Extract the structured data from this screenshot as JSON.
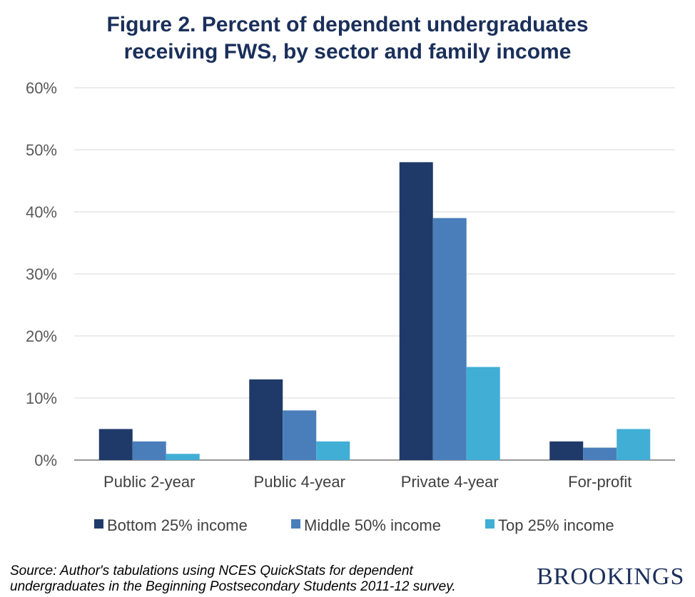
{
  "title_lines": [
    "Figure 2. Percent of dependent undergraduates",
    "receiving FWS, by sector and family income"
  ],
  "source_lines": [
    "Source: Author's tabulations using NCES QuickStats for dependent",
    "undergraduates in the Beginning Postsecondary Students 2011-12 survey."
  ],
  "brand": "BROOKINGS",
  "colors": {
    "bottom": "#1f3a68",
    "middle": "#4a7ebb",
    "top": "#41aed6",
    "grid": "#d9d9d9",
    "axis": "#595959"
  },
  "chart_data": {
    "type": "bar",
    "title": "Figure 2. Percent of dependent undergraduates receiving FWS, by sector and family income",
    "categories": [
      "Public 2-year",
      "Public 4-year",
      "Private 4-year",
      "For-profit"
    ],
    "series": [
      {
        "name": "Bottom 25% income",
        "values": [
          5,
          13,
          48,
          3
        ]
      },
      {
        "name": "Middle 50% income",
        "values": [
          3,
          8,
          39,
          2
        ]
      },
      {
        "name": "Top 25% income",
        "values": [
          1,
          3,
          15,
          5
        ]
      }
    ],
    "yticks": [
      "0%",
      "10%",
      "20%",
      "30%",
      "40%",
      "50%",
      "60%"
    ],
    "ylim": [
      0,
      60
    ],
    "grid": true,
    "legend_position": "bottom"
  }
}
